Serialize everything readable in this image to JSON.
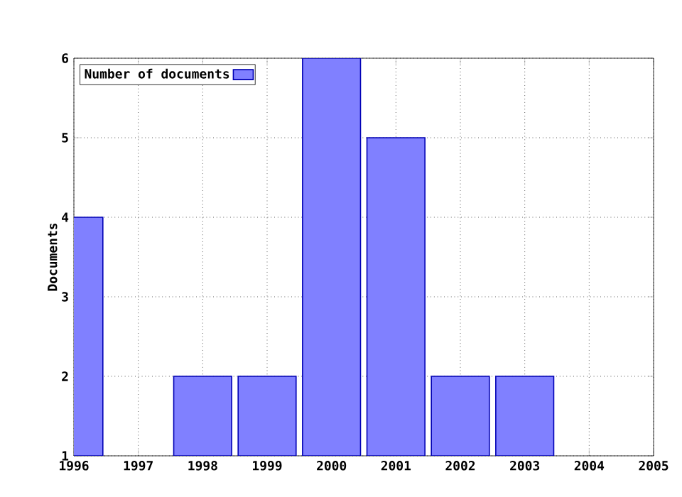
{
  "chart_data": {
    "type": "bar",
    "ylabel": "Documents",
    "x": [
      1996,
      1998,
      1999,
      2000,
      2001,
      2002,
      2003
    ],
    "series": [
      {
        "name": "Number of documents",
        "color": "#8080ff",
        "values": [
          4,
          2,
          2,
          6,
          5,
          2,
          2
        ]
      }
    ],
    "xlim": [
      1996,
      2005
    ],
    "xticks": [
      1996,
      1997,
      1998,
      1999,
      2000,
      2001,
      2002,
      2003,
      2004,
      2005
    ],
    "ylim": [
      1,
      6
    ],
    "yticks": [
      1,
      2,
      3,
      4,
      5,
      6
    ],
    "grid": true,
    "legend": "top left"
  }
}
